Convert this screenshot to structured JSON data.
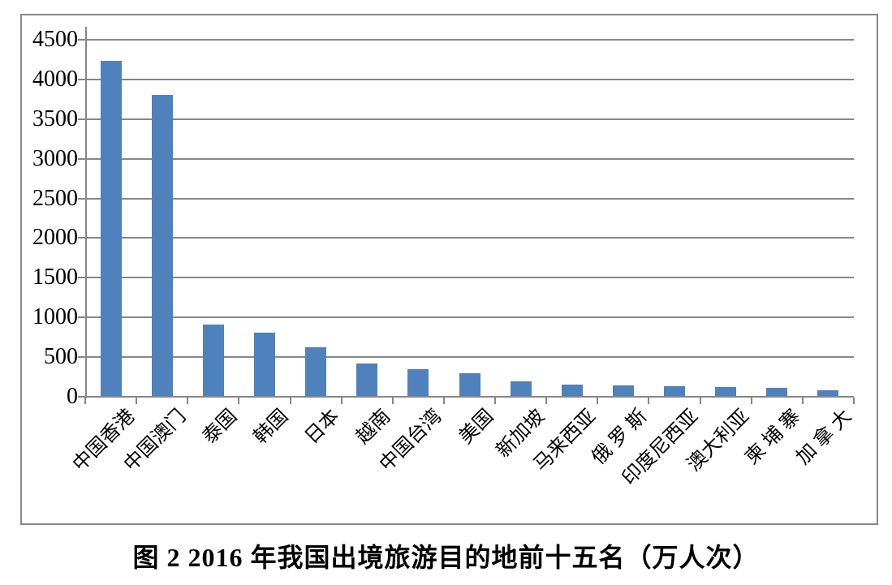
{
  "figure": {
    "caption": "图 2 2016 年我国出境旅游目的地前十五名（万人次）"
  },
  "chart_data": {
    "type": "bar",
    "title": "图 2 2016 年我国出境旅游目的地前十五名（万人次）",
    "unit": "万人次",
    "categories": [
      "中国香港",
      "中国澳门",
      "泰国",
      "韩国",
      "日本",
      "越南",
      "中国台湾",
      "美国",
      "新加坡",
      "马来西亚",
      "俄 罗 斯",
      "印度尼西亚",
      "澳大利亚",
      "柬 埔 寨",
      "加 拿 大"
    ],
    "values": [
      4230,
      3800,
      910,
      810,
      620,
      420,
      350,
      300,
      195,
      155,
      145,
      135,
      125,
      110,
      80
    ],
    "xlabel": "",
    "ylabel": "",
    "ylim": [
      0,
      4500
    ],
    "ytick_interval": 500,
    "yticks": [
      0,
      500,
      1000,
      1500,
      2000,
      2500,
      3000,
      3500,
      4000,
      4500
    ],
    "grid": true,
    "legend": false,
    "bar_color": "#4F81BD",
    "axis_color": "#878787",
    "text_color": "#000000",
    "plot_background": "#ffffff"
  }
}
